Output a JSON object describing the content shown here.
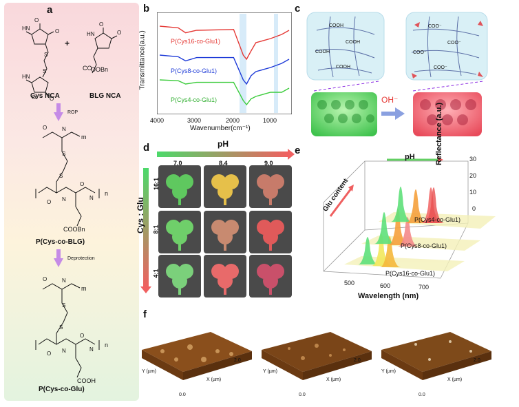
{
  "panel_a": {
    "label": "a",
    "cys_nca": "Cys NCA",
    "blg_nca": "BLG NCA",
    "plus": "+",
    "rop": "ROP",
    "poly_blg": "P(Cys-co-BLG)",
    "deprotection": "Deprotection",
    "poly_glu": "P(Cys-co-Glu)",
    "obn": "OOBn",
    "coobn": "COOBn",
    "cooh": "COOH",
    "m": "m",
    "n": "n"
  },
  "panel_b": {
    "label": "b",
    "ylabel": "Transmittance(a.u.)",
    "xlabel": "Wavenumber(cm⁻¹)",
    "series": [
      {
        "name": "P(Cys16-co-Glu1)",
        "color": "#e53935"
      },
      {
        "name": "P(Cys8-co-Glu1)",
        "color": "#1e3bd8"
      },
      {
        "name": "P(Cys4-co-Glu1)",
        "color": "#3ccc3c"
      }
    ],
    "ticks": [
      "4000",
      "3000",
      "2000",
      "1000"
    ]
  },
  "panel_c": {
    "label": "c",
    "oh": "OH⁻",
    "cooh": "COOH",
    "coo": "COO⁻"
  },
  "panel_d": {
    "label": "d",
    "ph_title": "pH",
    "ph_values": [
      "7.0",
      "8.4",
      "9.0"
    ],
    "ratio_title": "Cys : Glu",
    "ratios": [
      "16:1",
      "8:1",
      "4:1"
    ]
  },
  "panel_e": {
    "label": "e",
    "ph": "pH",
    "glu_content": "Glu content",
    "ylabel": "Reflectance (a.u.)",
    "xlabel": "Wavelength (nm)",
    "xticks": [
      "500",
      "600",
      "700"
    ],
    "yticks": [
      "0",
      "10",
      "20",
      "30"
    ],
    "series": [
      "P(Cys4-co-Glu1)",
      "P(Cys8-co-Glu1)",
      "P(Cys16-co-Glu1)"
    ]
  },
  "panel_f": {
    "label": "f",
    "axis_x": "X (µm)",
    "axis_y": "Y (µm)",
    "ticks": [
      "0.0",
      "0.5",
      "1.0",
      "1.5",
      "2.0"
    ]
  },
  "chart_data": [
    {
      "type": "line",
      "title": "",
      "xlabel": "Wavenumber(cm⁻¹)",
      "ylabel": "Transmittance(a.u.)",
      "xlim": [
        4000,
        500
      ],
      "series": [
        {
          "name": "P(Cys16-co-Glu1)",
          "x": [
            4000,
            3500,
            3300,
            3000,
            2000,
            1740,
            1650,
            1530,
            1400,
            1000,
            700,
            500
          ],
          "y": [
            0.9,
            0.88,
            0.82,
            0.85,
            0.86,
            0.55,
            0.5,
            0.6,
            0.7,
            0.75,
            0.8,
            0.85
          ]
        },
        {
          "name": "P(Cys8-co-Glu1)",
          "x": [
            4000,
            3500,
            3300,
            3000,
            2000,
            1740,
            1650,
            1530,
            1400,
            1000,
            700,
            500
          ],
          "y": [
            0.55,
            0.53,
            0.48,
            0.52,
            0.52,
            0.25,
            0.2,
            0.3,
            0.35,
            0.4,
            0.45,
            0.5
          ]
        },
        {
          "name": "P(Cys4-co-Glu1)",
          "x": [
            4000,
            3500,
            3300,
            3000,
            2000,
            1740,
            1650,
            1530,
            1400,
            1000,
            700,
            500
          ],
          "y": [
            0.25,
            0.24,
            0.2,
            0.22,
            0.22,
            0.0,
            -0.05,
            0.02,
            0.05,
            0.1,
            0.1,
            0.15
          ]
        }
      ]
    }
  ]
}
